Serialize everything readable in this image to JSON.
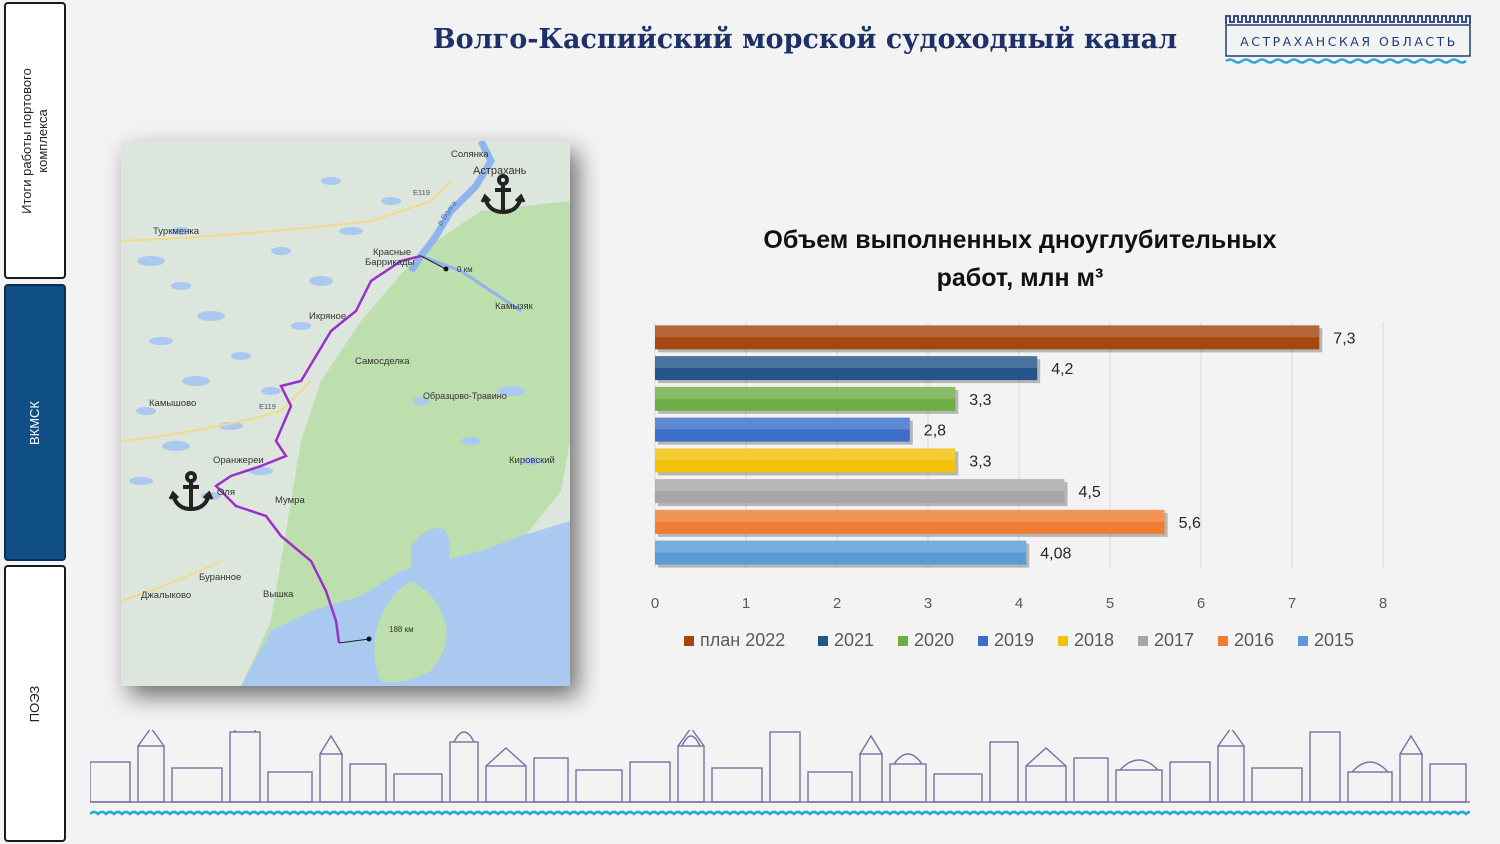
{
  "header": {
    "title": "Волго-Каспийский морской судоходный канал",
    "logo_text": "АСТРАХАНСКАЯ ОБЛАСТЬ"
  },
  "sidebar": {
    "tabs": [
      {
        "label": "Итоги работы портового\nкомплекса",
        "active": false
      },
      {
        "label": "ВКМСК",
        "active": true
      },
      {
        "label": "ПОЭЗ",
        "active": false
      }
    ]
  },
  "map": {
    "labels": {
      "solyanka": "Солянка",
      "astrakhan": "Астрахань",
      "turkmenka": "Туркменка",
      "krasnye": "Красные",
      "barrikady": "Баррикады",
      "km0": "0 км",
      "kamyzyak": "Камызяк",
      "ikryanoe": "Икряное",
      "samosdelka": "Самосделка",
      "obraztsovo": "Образцово-Травино",
      "kamyshovo": "Камышово",
      "kirovsky": "Кировский",
      "oranzherei": "Оранжереи",
      "mumra": "Мумра",
      "olya": "Оля",
      "buranoe": "Буранное",
      "dzhalykovo": "Джалыково",
      "vyshka": "Вышка",
      "km188": "188 км",
      "e119a": "E119",
      "e119b": "E119",
      "volga": "р.Волга"
    },
    "colors": {
      "land": "#dde6dc",
      "land_green": "#b9dcaa",
      "water": "#a9c9f0",
      "route": "#9b30c8"
    }
  },
  "chart_data": {
    "type": "bar",
    "orientation": "horizontal",
    "title": "Объем выполненных дноуглубительных работ, млн м³",
    "title_lines": [
      "Объем выполненных дноуглубительных",
      "работ, млн м³"
    ],
    "categories": [
      "план 2022",
      "2021",
      "2020",
      "2019",
      "2018",
      "2017",
      "2016",
      "2015"
    ],
    "values": [
      7.3,
      4.2,
      3.3,
      2.8,
      3.3,
      4.5,
      5.6,
      4.08
    ],
    "data_labels": [
      "7,3",
      "4,2",
      "3,3",
      "2,8",
      "3,3",
      "4,5",
      "5,6",
      "4,08"
    ],
    "colors": [
      "#a5460f",
      "#24558a",
      "#6fad46",
      "#3b6ec7",
      "#f2c10a",
      "#a6a6a6",
      "#ee7d31",
      "#5a9bd5"
    ],
    "xlim": [
      0,
      8
    ],
    "xticks": [
      "0",
      "1",
      "2",
      "3",
      "4",
      "5",
      "6",
      "7",
      "8"
    ],
    "grid": true,
    "legend_position": "bottom"
  }
}
